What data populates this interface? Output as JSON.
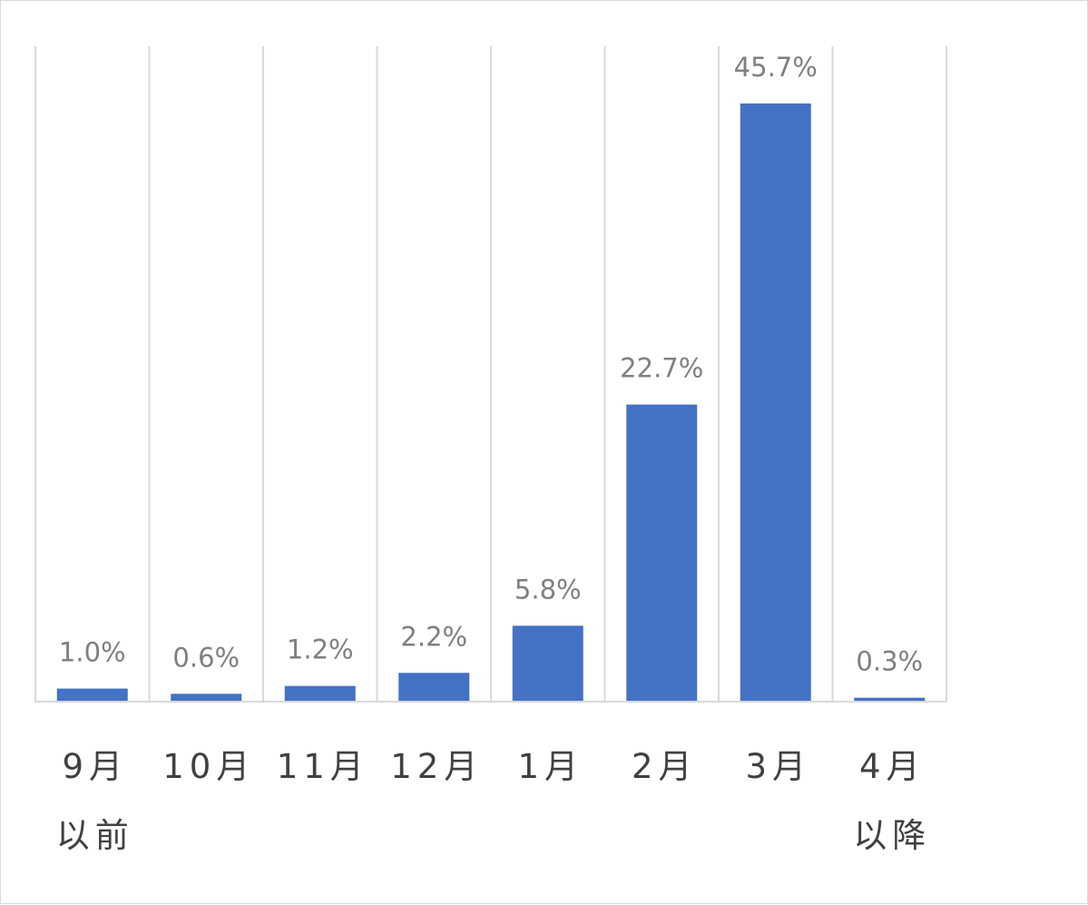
{
  "chart_data": {
    "type": "bar",
    "categories": [
      [
        "9月",
        "以前"
      ],
      [
        "10月"
      ],
      [
        "11月"
      ],
      [
        "12月"
      ],
      [
        "1月"
      ],
      [
        "2月"
      ],
      [
        "3月"
      ],
      [
        "4月",
        "以降"
      ]
    ],
    "values": [
      1.0,
      0.6,
      1.2,
      2.2,
      5.8,
      22.7,
      45.7,
      0.3
    ],
    "data_labels": [
      "1.0%",
      "0.6%",
      "1.2%",
      "2.2%",
      "5.8%",
      "22.7%",
      "45.7%",
      "0.3%"
    ],
    "value_unit": "%",
    "ylim": [
      0,
      50
    ],
    "grid": "vertical category separators",
    "legend": "none",
    "bar_color": "#4472c4",
    "grid_color": "#d9d9d9",
    "label_color": "#7f7f7f",
    "tick_color": "#404040"
  }
}
